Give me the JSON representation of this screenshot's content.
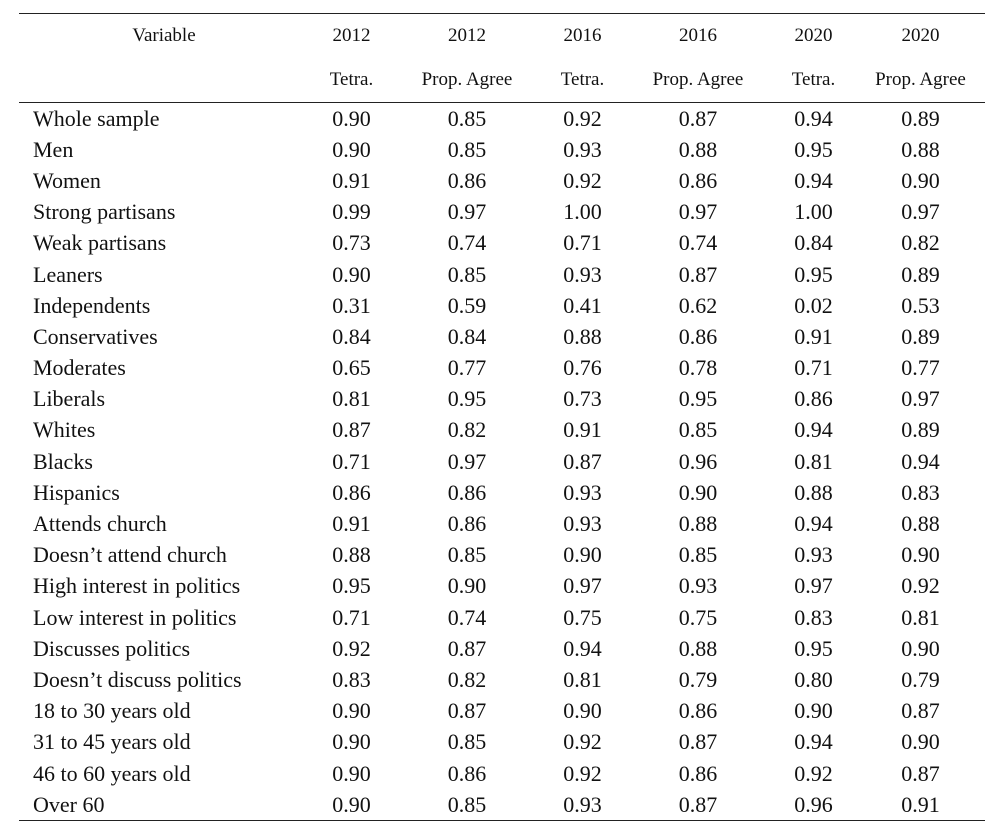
{
  "table": {
    "headers_row1": [
      "Variable",
      "2012",
      "2012",
      "2016",
      "2016",
      "2020",
      "2020"
    ],
    "headers_row2": [
      "",
      "Tetra.",
      "Prop. Agree",
      "Tetra.",
      "Prop. Agree",
      "Tetra.",
      "Prop. Agree"
    ],
    "rows": [
      [
        "Whole sample",
        "0.90",
        "0.85",
        "0.92",
        "0.87",
        "0.94",
        "0.89"
      ],
      [
        "Men",
        "0.90",
        "0.85",
        "0.93",
        "0.88",
        "0.95",
        "0.88"
      ],
      [
        "Women",
        "0.91",
        "0.86",
        "0.92",
        "0.86",
        "0.94",
        "0.90"
      ],
      [
        "Strong partisans",
        "0.99",
        "0.97",
        "1.00",
        "0.97",
        "1.00",
        "0.97"
      ],
      [
        "Weak partisans",
        "0.73",
        "0.74",
        "0.71",
        "0.74",
        "0.84",
        "0.82"
      ],
      [
        "Leaners",
        "0.90",
        "0.85",
        "0.93",
        "0.87",
        "0.95",
        "0.89"
      ],
      [
        "Independents",
        "0.31",
        "0.59",
        "0.41",
        "0.62",
        "0.02",
        "0.53"
      ],
      [
        "Conservatives",
        "0.84",
        "0.84",
        "0.88",
        "0.86",
        "0.91",
        "0.89"
      ],
      [
        "Moderates",
        "0.65",
        "0.77",
        "0.76",
        "0.78",
        "0.71",
        "0.77"
      ],
      [
        "Liberals",
        "0.81",
        "0.95",
        "0.73",
        "0.95",
        "0.86",
        "0.97"
      ],
      [
        "Whites",
        "0.87",
        "0.82",
        "0.91",
        "0.85",
        "0.94",
        "0.89"
      ],
      [
        "Blacks",
        "0.71",
        "0.97",
        "0.87",
        "0.96",
        "0.81",
        "0.94"
      ],
      [
        "Hispanics",
        "0.86",
        "0.86",
        "0.93",
        "0.90",
        "0.88",
        "0.83"
      ],
      [
        "Attends church",
        "0.91",
        "0.86",
        "0.93",
        "0.88",
        "0.94",
        "0.88"
      ],
      [
        "Doesn’t attend church",
        "0.88",
        "0.85",
        "0.90",
        "0.85",
        "0.93",
        "0.90"
      ],
      [
        "High interest in politics",
        "0.95",
        "0.90",
        "0.97",
        "0.93",
        "0.97",
        "0.92"
      ],
      [
        "Low interest in politics",
        "0.71",
        "0.74",
        "0.75",
        "0.75",
        "0.83",
        "0.81"
      ],
      [
        "Discusses politics",
        "0.92",
        "0.87",
        "0.94",
        "0.88",
        "0.95",
        "0.90"
      ],
      [
        "Doesn’t discuss politics",
        "0.83",
        "0.82",
        "0.81",
        "0.79",
        "0.80",
        "0.79"
      ],
      [
        "18 to 30 years old",
        "0.90",
        "0.87",
        "0.90",
        "0.86",
        "0.90",
        "0.87"
      ],
      [
        "31 to 45 years old",
        "0.90",
        "0.85",
        "0.92",
        "0.87",
        "0.94",
        "0.90"
      ],
      [
        "46 to 60 years old",
        "0.90",
        "0.86",
        "0.92",
        "0.86",
        "0.92",
        "0.87"
      ],
      [
        "Over 60",
        "0.90",
        "0.85",
        "0.93",
        "0.87",
        "0.96",
        "0.91"
      ]
    ]
  }
}
